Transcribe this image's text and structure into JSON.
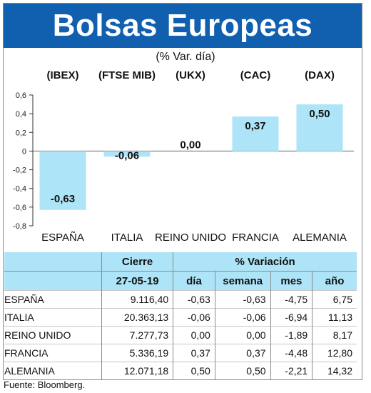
{
  "title": "Bolsas Europeas",
  "subtitle": "(% Var. día)",
  "source": "Fuente: Bloomberg.",
  "colors": {
    "header_band": "#1160b0",
    "bar_fill": "#aee4f7",
    "table_header": "#aee4f7"
  },
  "chart_data": {
    "type": "bar",
    "categories": [
      "ESPAÑA",
      "ITALIA",
      "REINO UNIDO",
      "FRANCIA",
      "ALEMANIA"
    ],
    "indices": [
      "(IBEX)",
      "(FTSE MIB)",
      "(UKX)",
      "(CAC)",
      "(DAX)"
    ],
    "values": [
      -0.63,
      -0.06,
      0.0,
      0.37,
      0.5
    ],
    "value_labels": [
      "-0,63",
      "-0,06",
      "0,00",
      "0,37",
      "0,50"
    ],
    "ylim": [
      -0.8,
      0.6
    ],
    "yticks": [
      0.6,
      0.4,
      0.2,
      0,
      -0.2,
      -0.4,
      -0.6,
      -0.8
    ],
    "ytick_labels": [
      "0,6",
      "0,4",
      "0,2",
      "0",
      "-0,2",
      "-0,4",
      "-0,6",
      "-0,8"
    ],
    "grid": false,
    "title": "Bolsas Europeas",
    "xlabel": "",
    "ylabel": ""
  },
  "table": {
    "header_cierre": "Cierre",
    "header_variacion": "% Variación",
    "date": "27-05-19",
    "cols": [
      "día",
      "semana",
      "mes",
      "año"
    ],
    "rows": [
      {
        "country": "ESPAÑA",
        "close": "9.116,40",
        "dia": "-0,63",
        "semana": "-0,63",
        "mes": "-4,75",
        "anio": "6,75"
      },
      {
        "country": "ITALIA",
        "close": "20.363,13",
        "dia": "-0,06",
        "semana": "-0,06",
        "mes": "-6,94",
        "anio": "11,13"
      },
      {
        "country": "REINO UNIDO",
        "close": "7.277,73",
        "dia": "0,00",
        "semana": "0,00",
        "mes": "-1,89",
        "anio": "8,17"
      },
      {
        "country": "FRANCIA",
        "close": "5.336,19",
        "dia": "0,37",
        "semana": "0,37",
        "mes": "-4,48",
        "anio": "12,80"
      },
      {
        "country": "ALEMANIA",
        "close": "12.071,18",
        "dia": "0,50",
        "semana": "0,50",
        "mes": "-2,21",
        "anio": "14,32"
      }
    ]
  }
}
